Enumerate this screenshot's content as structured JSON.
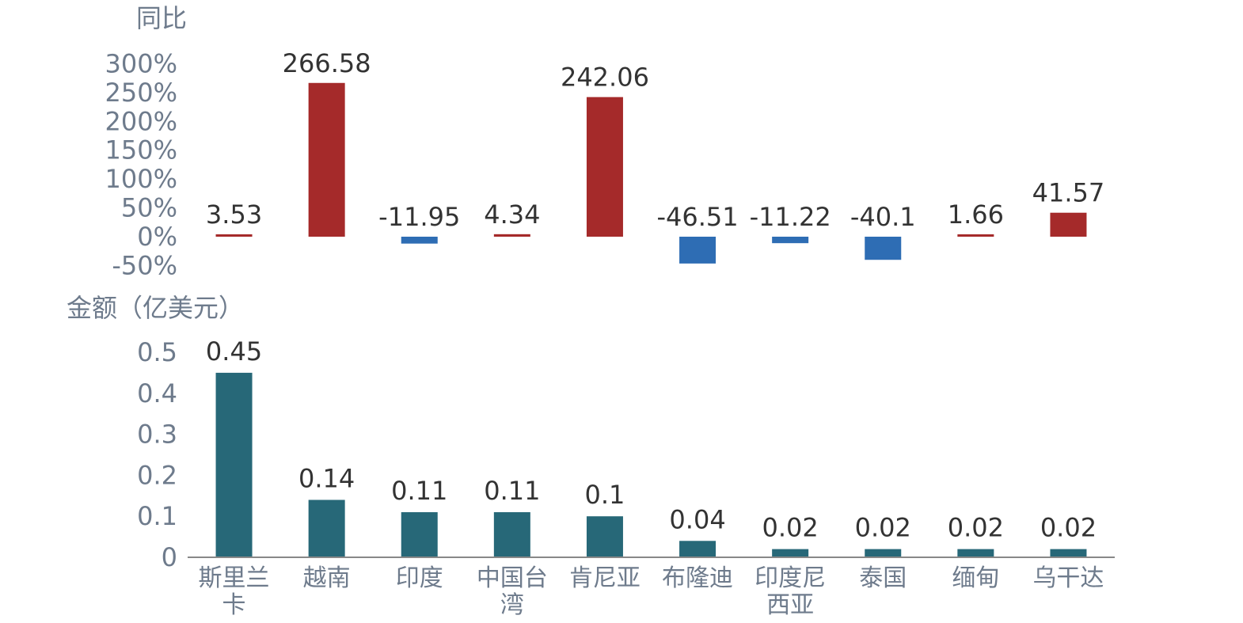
{
  "chart_data": [
    {
      "type": "bar",
      "title": "",
      "unit_label": "同比",
      "categories": [
        "斯里兰卡",
        "越南",
        "印度",
        "中国台湾",
        "肯尼亚",
        "布隆迪",
        "印度尼西亚",
        "泰国",
        "缅甸",
        "乌干达"
      ],
      "values": [
        3.53,
        266.58,
        -11.95,
        4.34,
        242.06,
        -46.51,
        -11.22,
        -40.1,
        1.66,
        41.57
      ],
      "value_labels": [
        "3.53",
        "266.58",
        "-11.95",
        "4.34",
        "242.06",
        "-46.51",
        "-11.22",
        "-40.1",
        "1.66",
        "41.57"
      ],
      "ylim": [
        -50,
        300
      ],
      "yticks": [
        "300%",
        "250%",
        "200%",
        "150%",
        "100%",
        "50%",
        "0%",
        "-50%"
      ],
      "colors": {
        "positive": "#a52a2a",
        "negative": "#2e6db4"
      },
      "grid": false
    },
    {
      "type": "bar",
      "title": "",
      "unit_label": "金额（亿美元）",
      "categories": [
        "斯里兰卡",
        "越南",
        "印度",
        "中国台湾",
        "肯尼亚",
        "布隆迪",
        "印度尼西亚",
        "泰国",
        "缅甸",
        "乌干达"
      ],
      "category_lines": [
        [
          "斯里兰",
          "卡"
        ],
        [
          "越南"
        ],
        [
          "印度"
        ],
        [
          "中国台",
          "湾"
        ],
        [
          "肯尼亚"
        ],
        [
          "布隆迪"
        ],
        [
          "印度尼",
          "西亚"
        ],
        [
          "泰国"
        ],
        [
          "缅甸"
        ],
        [
          "乌干达"
        ]
      ],
      "values": [
        0.45,
        0.14,
        0.11,
        0.11,
        0.1,
        0.04,
        0.02,
        0.02,
        0.02,
        0.02
      ],
      "value_labels": [
        "0.45",
        "0.14",
        "0.11",
        "0.11",
        "0.1",
        "0.04",
        "0.02",
        "0.02",
        "0.02",
        "0.02"
      ],
      "ylim": [
        0,
        0.5
      ],
      "yticks": [
        "0.5",
        "0.4",
        "0.3",
        "0.2",
        "0.1",
        "0"
      ],
      "colors": {
        "bar": "#276878",
        "axis": "#888888"
      },
      "grid": false
    }
  ]
}
